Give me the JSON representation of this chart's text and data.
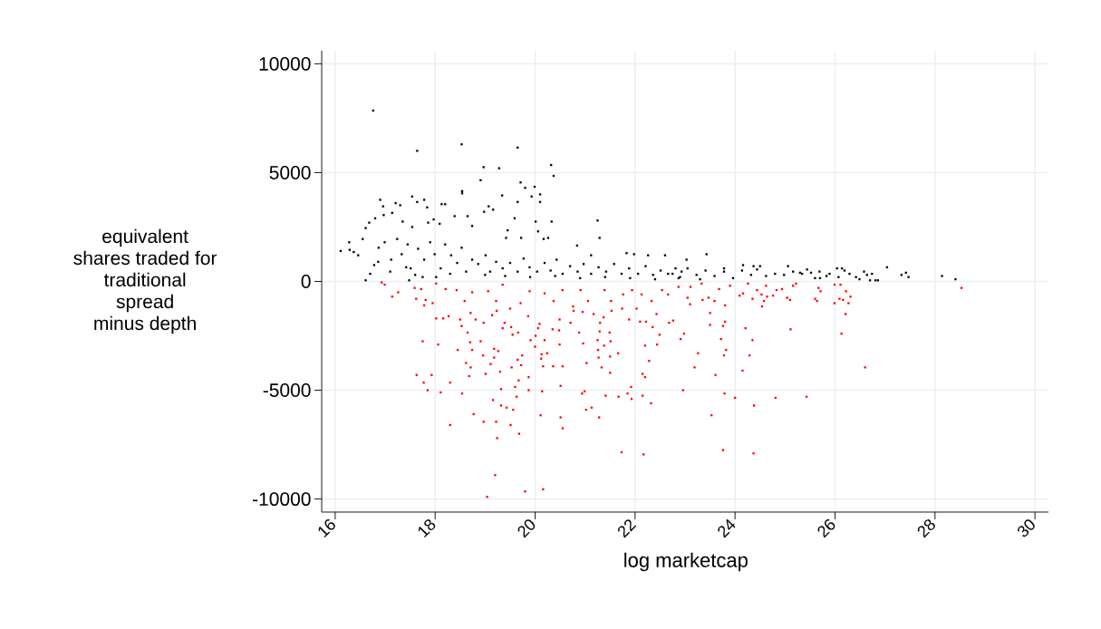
{
  "chart_data": {
    "type": "scatter",
    "xlabel": "log marketcap",
    "ylabel": "equivalent shares traded for traditional spread minus depth",
    "xlim": [
      15.73,
      30.27
    ],
    "ylim": [
      -10600,
      10600
    ],
    "xticks": [
      16,
      18,
      20,
      22,
      24,
      26,
      28,
      30
    ],
    "yticks": [
      -10000,
      -5000,
      0,
      5000,
      10000
    ],
    "grid": true,
    "marker": "square",
    "series": [
      {
        "color": "#000000",
        "x": [
          16.76,
          17.64,
          18.53,
          19.65,
          18.97,
          19.28,
          20.32,
          20.37,
          18.91,
          19.71,
          19.8,
          19.99,
          19.93,
          20.1,
          20.1,
          19.65,
          19.34,
          18.54,
          18.54,
          16.9,
          17.54,
          17.64,
          17.78,
          17.84,
          17.21,
          17.3,
          16.96,
          18.13,
          18.2,
          19.07,
          19.16,
          18.98,
          19.59,
          20.01,
          20.33,
          21.25,
          21.29,
          19.45,
          19.42,
          19.72,
          20.06,
          20.17,
          20.26,
          20.84,
          21.12,
          21.83,
          21.98,
          22.26,
          22.6,
          16.11,
          16.28,
          16.29,
          16.37,
          16.46,
          16.55,
          16.68,
          16.61,
          16.8,
          16.97,
          17.14,
          17.35,
          17.54,
          17.86,
          17.97,
          18.09,
          18.39,
          18.65,
          18.74,
          16.61,
          16.7,
          16.86,
          16.78,
          17.1,
          17.42,
          17.48,
          17.75,
          18.02,
          16.87,
          16.99,
          17.12,
          17.24,
          17.33,
          17.45,
          17.51,
          17.66,
          17.78,
          17.9,
          17.99,
          18.11,
          18.2,
          18.32,
          18.44,
          18.53,
          18.62,
          18.74,
          18.86,
          19.01,
          19.1,
          19.22,
          19.35,
          19.5,
          19.65,
          19.77,
          19.89,
          20.04,
          20.19,
          20.31,
          20.43,
          20.55,
          20.7,
          20.85,
          20.97,
          21.12,
          21.27,
          21.42,
          21.58,
          21.73,
          21.88,
          22.06,
          22.21,
          22.36,
          22.51,
          22.66,
          22.81,
          22.93,
          23.43,
          23.03,
          24.16,
          25.06,
          27.04,
          27.42,
          27.33,
          27.47,
          28.14,
          28.41,
          26.7,
          26.86,
          26.58,
          26.74,
          26.29,
          26.04,
          26.14,
          26.42,
          25.69,
          25.44,
          25.83,
          25.6,
          25.3,
          24.5,
          24.37,
          23.78,
          22.75,
          22.87,
          23.05,
          23.23,
          23.41,
          23.59,
          23.78,
          23.96,
          24.14,
          24.32,
          24.44,
          24.62,
          24.8,
          24.98,
          25.16,
          25.34,
          25.52,
          25.7,
          25.89,
          26.07,
          26.19,
          26.49,
          26.64,
          26.81,
          19.4,
          19.9,
          20.4,
          20.9,
          21.4,
          21.9,
          22.4,
          22.9,
          23.3,
          19.0,
          18.3,
          17.6
        ],
        "values": [
          7850,
          6000,
          6300,
          6150,
          5250,
          5200,
          5350,
          4850,
          4650,
          4550,
          4300,
          4350,
          3900,
          4000,
          3650,
          3650,
          3950,
          4150,
          4050,
          3750,
          3900,
          3650,
          3750,
          3400,
          3600,
          3500,
          3450,
          3550,
          3550,
          3450,
          3300,
          3200,
          2900,
          2750,
          2750,
          2800,
          2000,
          2350,
          2000,
          2000,
          2300,
          1950,
          2000,
          1650,
          1200,
          1300,
          1250,
          1200,
          1200,
          1400,
          1800,
          1450,
          1350,
          1200,
          1950,
          2700,
          2450,
          2900,
          3050,
          3150,
          2750,
          2500,
          2700,
          2850,
          2650,
          3000,
          3000,
          2550,
          50,
          350,
          900,
          750,
          450,
          650,
          50,
          200,
          200,
          1550,
          1800,
          1000,
          1950,
          1250,
          1700,
          600,
          1500,
          1000,
          1800,
          1250,
          600,
          1700,
          1200,
          850,
          1550,
          450,
          1000,
          800,
          1200,
          450,
          900,
          600,
          850,
          450,
          1050,
          650,
          450,
          850,
          500,
          1000,
          350,
          700,
          450,
          800,
          350,
          650,
          450,
          800,
          350,
          600,
          350,
          700,
          300,
          500,
          350,
          600,
          450,
          1250,
          1000,
          750,
          700,
          650,
          400,
          300,
          200,
          250,
          100,
          50,
          50,
          450,
          350,
          350,
          600,
          600,
          200,
          450,
          550,
          250,
          150,
          400,
          700,
          700,
          600,
          350,
          150,
          600,
          300,
          500,
          250,
          450,
          150,
          500,
          300,
          550,
          250,
          350,
          300,
          450,
          350,
          400,
          150,
          350,
          200,
          500,
          100,
          300,
          50,
          250,
          200,
          250,
          150,
          200,
          150,
          100,
          200,
          100,
          300,
          350,
          300
        ]
      },
      {
        "color": "#ff0000",
        "x": [
          28.53,
          26.6,
          26.31,
          26.21,
          26.13,
          26.22,
          26.27,
          26.16,
          26.09,
          25.99,
          26.11,
          25.99,
          25.43,
          25.11,
          24.81,
          25.67,
          25.71,
          25.6,
          25.64,
          25.1,
          25.04,
          24.37,
          23.76,
          24.38,
          24.0,
          23.79,
          23.53,
          22.96,
          24.15,
          24.29,
          24.35,
          24.21,
          23.61,
          23.19,
          23.26,
          22.91,
          22.98,
          22.76,
          23.78,
          23.82,
          23.72,
          23.76,
          23.8,
          23.5,
          23.5,
          23.8,
          23.59,
          24.54,
          24.58,
          23.47,
          23.35,
          23.1,
          23.05,
          24.53,
          24.64,
          24.76,
          24.83,
          24.94,
          24.35,
          24.09,
          24.16,
          19.04,
          19.2,
          19.8,
          20.16,
          21.73,
          22.17,
          19.24,
          19.68,
          19.22,
          18.97,
          18.77,
          18.3,
          19.51,
          20.11,
          20.51,
          20.55,
          21.28,
          21.02,
          21.13,
          20.94,
          20.99,
          21.41,
          21.67,
          21.85,
          21.93,
          22.15,
          22.32,
          21.92,
          22.2,
          22.15,
          22.28,
          22.44,
          22.49,
          22.2,
          22.35,
          22.68,
          17.63,
          17.77,
          17.85,
          17.93,
          18.11,
          18.3,
          18.54,
          17.75,
          18.06,
          18.45,
          18.62,
          18.71,
          18.68,
          19.01,
          19.11,
          19.3,
          19.32,
          19.16,
          19.32,
          19.43,
          19.56,
          19.63,
          19.6,
          19.67,
          19.65,
          19.72,
          19.53,
          19.87,
          19.87,
          20.14,
          19.74,
          19.18,
          18.96,
          18.91,
          18.74,
          18.7,
          20.16,
          20.24,
          20.13,
          20.36,
          20.49,
          20.55,
          20.51,
          21.03,
          20.96,
          21.33,
          21.5,
          21.27,
          21.26,
          21.38,
          21.51,
          21.66,
          21.5,
          21.25,
          21.29,
          21.49,
          20.88,
          20.01,
          19.91,
          20.19,
          20.0,
          20.12,
          19.18,
          19.26,
          17.14,
          17.26,
          17.62,
          17.78,
          17.95,
          18.02,
          18.16,
          18.27,
          18.5,
          18.53,
          18.65,
          18.71,
          18.81,
          18.97,
          19.14,
          19.23,
          19.35,
          19.39,
          19.52,
          19.55,
          19.66,
          19.86,
          20.06,
          20.09,
          20.35,
          20.48,
          20.71,
          20.49,
          20.77,
          20.95,
          21.17,
          21.37,
          21.3,
          21.53,
          21.74,
          21.88,
          22.03,
          22.1,
          22.22,
          22.43,
          16.93,
          16.99,
          17.59,
          17.72,
          17.81,
          18.02,
          18.21,
          18.43,
          18.59,
          18.74,
          19.06,
          19.22,
          19.35,
          19.5,
          19.71,
          19.89,
          20.19,
          20.37,
          20.55,
          20.76,
          20.91,
          21.06,
          21.39,
          21.52,
          21.76,
          21.94,
          22.13,
          22.33,
          22.54,
          22.66,
          22.87,
          23.11,
          23.33,
          23.68,
          23.9,
          24.26,
          24.44,
          24.62,
          25.16,
          25.22
        ],
        "values": [
          -300,
          -3950,
          -700,
          -1500,
          -2400,
          -450,
          -1000,
          -850,
          -800,
          -1000,
          -150,
          -150,
          -5300,
          -2200,
          -5350,
          -300,
          -450,
          -800,
          -900,
          -850,
          -750,
          -7900,
          -7750,
          -5700,
          -5350,
          -5150,
          -6150,
          -5000,
          -4100,
          -3400,
          -2700,
          -2150,
          -4300,
          -3950,
          -3300,
          -2650,
          -2400,
          -1800,
          -3400,
          -3150,
          -2650,
          -2050,
          -1850,
          -2000,
          -1450,
          -1100,
          -900,
          -1150,
          -900,
          -750,
          -850,
          -1050,
          -750,
          -600,
          -700,
          -650,
          -400,
          -350,
          -800,
          -650,
          -550,
          -9900,
          -8900,
          -9650,
          -9550,
          -7850,
          -7950,
          -7200,
          -7000,
          -6450,
          -6450,
          -6100,
          -6600,
          -6600,
          -6150,
          -6250,
          -6750,
          -6250,
          -5900,
          -5800,
          -5150,
          -5050,
          -5250,
          -5300,
          -5150,
          -5400,
          -5250,
          -5600,
          -4850,
          -4400,
          -4250,
          -3650,
          -2900,
          -2450,
          -2950,
          -2100,
          -1900,
          -4300,
          -4650,
          -5000,
          -4300,
          -5100,
          -4650,
          -5150,
          -2750,
          -2900,
          -3150,
          -3750,
          -3950,
          -4350,
          -4250,
          -3800,
          -4150,
          -4950,
          -5450,
          -5700,
          -5800,
          -5900,
          -5300,
          -4850,
          -4550,
          -3600,
          -3850,
          -3950,
          -4400,
          -5000,
          -5050,
          -3400,
          -3500,
          -3400,
          -2750,
          -3150,
          -2800,
          -3900,
          -3300,
          -3350,
          -3900,
          -2900,
          -3900,
          -4800,
          -3750,
          -2850,
          -3950,
          -4200,
          -3500,
          -3150,
          -2950,
          -2750,
          -3300,
          -3450,
          -2700,
          -2300,
          -2350,
          -2350,
          -2500,
          -2700,
          -2700,
          -3000,
          -3550,
          -3100,
          -3200,
          -700,
          -500,
          -800,
          -1100,
          -1000,
          -1700,
          -1700,
          -1600,
          -1750,
          -2050,
          -2350,
          -1450,
          -1750,
          -1900,
          -1550,
          -1350,
          -2150,
          -1900,
          -2100,
          -2450,
          -2350,
          -1600,
          -2150,
          -1950,
          -2200,
          -2250,
          -1900,
          -1750,
          -1350,
          -1400,
          -1500,
          -1650,
          -1900,
          -1350,
          -1250,
          -1750,
          -1250,
          -1850,
          -1850,
          -1500,
          -50,
          -150,
          -300,
          -350,
          -850,
          -100,
          -350,
          -400,
          -900,
          -500,
          -450,
          -900,
          -150,
          -1250,
          -1000,
          -450,
          -550,
          -900,
          -400,
          -1150,
          -400,
          -900,
          -400,
          -900,
          -600,
          -400,
          -600,
          -900,
          -400,
          -600,
          -250,
          -250,
          -100,
          -350,
          -200,
          -100,
          -400,
          -200,
          -200,
          -100
        ]
      }
    ]
  }
}
